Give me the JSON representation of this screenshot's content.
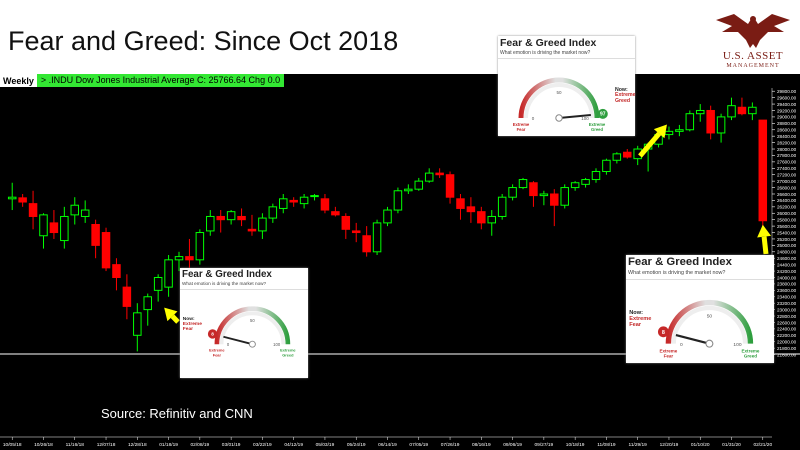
{
  "slide": {
    "title": "Fear and Greed: Since Oct 2018",
    "source": "Source: Refinitiv and CNN"
  },
  "logo": {
    "name": "U.S. ASSET",
    "sub": "MANAGEMENT",
    "icon": "eagle-icon",
    "color": "#7a1c14"
  },
  "header": {
    "period": "Weekly",
    "ticker_text": "> .INDU  Dow Jones Industrial Average  C: 25766.64  Chg 0.0",
    "ticker_color": "#33e833"
  },
  "chart_data": {
    "type": "candlestick",
    "title": "",
    "ticker": ".INDU",
    "series_name": "Dow Jones Industrial Average",
    "close": 25766.64,
    "change": 0.0,
    "period": "Weekly",
    "up_color": "#00ff00",
    "down_color": "#ff0000",
    "ylim": [
      21400,
      29900
    ],
    "y_ticks": [
      21600,
      21800,
      22000,
      22200,
      22400,
      22600,
      22800,
      23000,
      23200,
      23400,
      23600,
      23800,
      24000,
      24200,
      24400,
      24600,
      24800,
      25000,
      25200,
      25400,
      25600,
      25800,
      26000,
      26200,
      26400,
      26600,
      26800,
      27000,
      27200,
      27400,
      27600,
      27800,
      28000,
      28200,
      28400,
      28600,
      28800,
      29000,
      29200,
      29400,
      29600,
      29800
    ],
    "x_labels": [
      "10/05/18",
      "10/26/18",
      "11/16/18",
      "12/07/18",
      "12/28/18",
      "01/18/19",
      "02/08/19",
      "03/01/19",
      "03/22/19",
      "04/12/19",
      "05/03/19",
      "05/24/19",
      "06/14/19",
      "07/05/19",
      "07/26/19",
      "08/16/19",
      "09/06/19",
      "09/27/19",
      "10/18/19",
      "11/08/19",
      "11/29/19",
      "12/20/19",
      "01/10/20",
      "01/31/20",
      "02/21/20"
    ],
    "candles": [
      [
        26450,
        26950,
        26100,
        26500
      ],
      [
        26480,
        26600,
        26200,
        26350
      ],
      [
        26300,
        26700,
        25500,
        25900
      ],
      [
        25300,
        26000,
        24900,
        25950
      ],
      [
        25700,
        26100,
        25200,
        25400
      ],
      [
        25150,
        26200,
        24900,
        25900
      ],
      [
        25950,
        26500,
        25650,
        26250
      ],
      [
        25900,
        26400,
        25700,
        26100
      ],
      [
        25650,
        25800,
        24600,
        25000
      ],
      [
        25400,
        25550,
        24200,
        24300
      ],
      [
        24400,
        24600,
        23600,
        24000
      ],
      [
        23700,
        24100,
        22700,
        23100
      ],
      [
        22200,
        23200,
        21700,
        22900
      ],
      [
        23000,
        23500,
        22500,
        23400
      ],
      [
        23600,
        24100,
        23250,
        24000
      ],
      [
        23700,
        24700,
        23400,
        24550
      ],
      [
        24550,
        24800,
        24200,
        24650
      ],
      [
        24650,
        25200,
        24300,
        24550
      ],
      [
        24550,
        25500,
        24400,
        25400
      ],
      [
        25450,
        26100,
        25300,
        25900
      ],
      [
        25900,
        26100,
        25400,
        25800
      ],
      [
        25800,
        26100,
        25650,
        26050
      ],
      [
        25900,
        26150,
        25600,
        25800
      ],
      [
        25500,
        25950,
        25300,
        25450
      ],
      [
        25450,
        26000,
        25200,
        25850
      ],
      [
        25850,
        26300,
        25700,
        26200
      ],
      [
        26150,
        26600,
        26000,
        26450
      ],
      [
        26400,
        26500,
        26200,
        26350
      ],
      [
        26300,
        26600,
        26150,
        26500
      ],
      [
        26550,
        26600,
        26400,
        26550
      ],
      [
        26450,
        26600,
        26000,
        26100
      ],
      [
        26050,
        26200,
        25900,
        25950
      ],
      [
        25900,
        26000,
        25200,
        25500
      ],
      [
        25450,
        25700,
        25100,
        25400
      ],
      [
        25300,
        25600,
        24650,
        24800
      ],
      [
        24800,
        25800,
        24700,
        25700
      ],
      [
        25700,
        26200,
        25600,
        26100
      ],
      [
        26100,
        26800,
        26000,
        26700
      ],
      [
        26700,
        26900,
        26600,
        26750
      ],
      [
        26750,
        27100,
        26700,
        27000
      ],
      [
        27000,
        27400,
        26950,
        27250
      ],
      [
        27250,
        27400,
        27100,
        27200
      ],
      [
        27200,
        27300,
        26300,
        26500
      ],
      [
        26450,
        26600,
        25800,
        26150
      ],
      [
        26200,
        26500,
        25700,
        26050
      ],
      [
        26050,
        26200,
        25500,
        25700
      ],
      [
        25700,
        26100,
        25300,
        25900
      ],
      [
        25900,
        26600,
        25800,
        26500
      ],
      [
        26500,
        26900,
        26400,
        26800
      ],
      [
        26800,
        27100,
        26750,
        27050
      ],
      [
        26950,
        27000,
        26200,
        26550
      ],
      [
        26550,
        26700,
        26250,
        26600
      ],
      [
        26600,
        26750,
        25600,
        26250
      ],
      [
        26250,
        26900,
        26150,
        26800
      ],
      [
        26800,
        27000,
        26700,
        26950
      ],
      [
        26900,
        27100,
        26800,
        27050
      ],
      [
        27050,
        27400,
        26950,
        27300
      ],
      [
        27300,
        27700,
        27200,
        27650
      ],
      [
        27650,
        27900,
        27550,
        27850
      ],
      [
        27900,
        28000,
        27700,
        27750
      ],
      [
        27700,
        28100,
        27500,
        28000
      ],
      [
        28000,
        28200,
        27300,
        28150
      ],
      [
        28150,
        28500,
        28050,
        28450
      ],
      [
        28450,
        28700,
        28300,
        28550
      ],
      [
        28550,
        28750,
        28400,
        28600
      ],
      [
        28600,
        29200,
        28550,
        29100
      ],
      [
        29100,
        29400,
        28850,
        29200
      ],
      [
        29200,
        29350,
        28300,
        28500
      ],
      [
        28500,
        29100,
        28200,
        29000
      ],
      [
        29000,
        29600,
        28900,
        29350
      ],
      [
        29300,
        29600,
        29050,
        29100
      ],
      [
        29100,
        29450,
        28900,
        29300
      ],
      [
        28900,
        28900,
        25600,
        25766.64
      ]
    ],
    "annotations": [
      {
        "label": "Fear & Greed Index",
        "subtitle": "What emotion is driving the market now?",
        "date_index": 14,
        "now_label": "Now:",
        "state": "Extreme Fear",
        "value": 8,
        "gauge_labels": [
          "Extreme Fear",
          "Extreme Greed"
        ],
        "scale_marks": [
          "0",
          "50",
          "100"
        ]
      },
      {
        "label": "Fear & Greed Index",
        "subtitle": "What emotion is driving the market now?",
        "date_index": 63,
        "now_label": "Now:",
        "state": "Extreme Greed",
        "value": 97,
        "gauge_labels": [
          "Extreme Fear",
          "Extreme Greed"
        ],
        "scale_marks": [
          "0",
          "50",
          "100"
        ]
      },
      {
        "label": "Fear & Greed Index",
        "subtitle": "What emotion is driving the market now?",
        "date_index": 72,
        "now_label": "Now:",
        "state": "Extreme Fear",
        "value": 8,
        "gauge_labels": [
          "Extreme Fear",
          "Extreme Greed"
        ],
        "scale_marks": [
          "0",
          "50",
          "100"
        ]
      }
    ],
    "arrow_color": "#ffff00",
    "grid": false
  }
}
